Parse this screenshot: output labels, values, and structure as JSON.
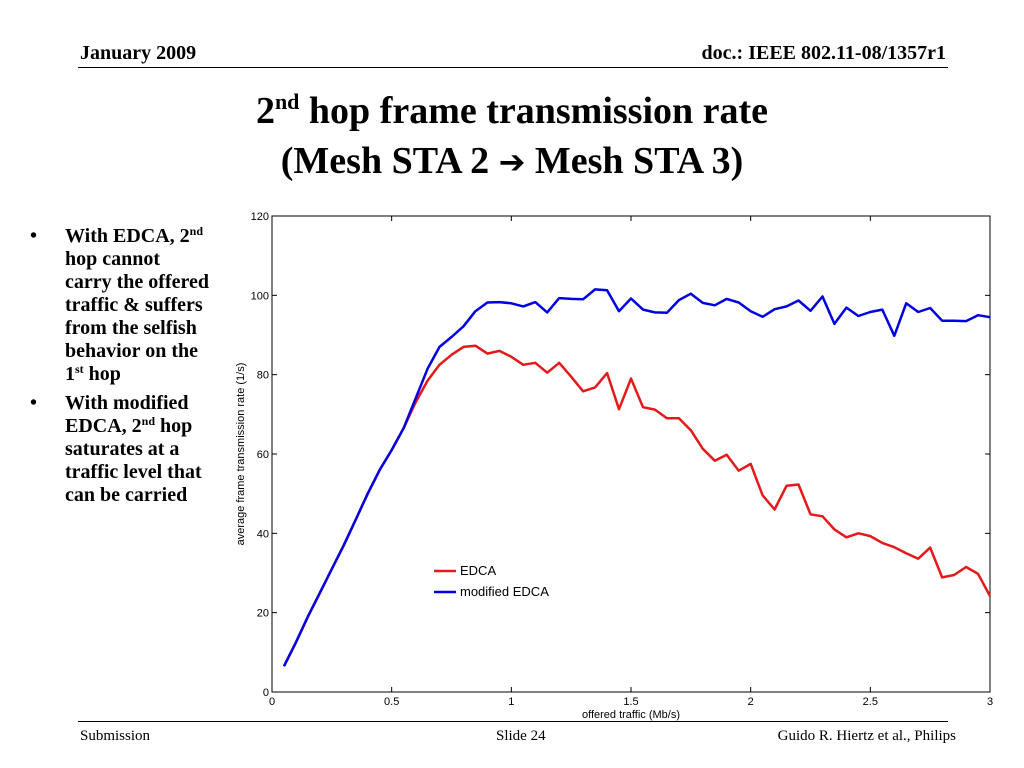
{
  "header": {
    "date": "January 2009",
    "doc": "doc.: IEEE 802.11-08/1357r1"
  },
  "title": {
    "line1_prefix": "2",
    "line1_sup": "nd",
    "line1_rest": " hop frame transmission rate",
    "line2_left": "(Mesh STA 2 ",
    "arrow": "➔",
    "line2_right": " Mesh STA 3)"
  },
  "bullets": {
    "marker": "•",
    "b1_a": "With EDCA, 2",
    "b1_sup1": "nd",
    "b1_b": " hop cannot carry the offered traffic & suffers from the selfish behavior on the 1",
    "b1_sup2": "st",
    "b1_c": " hop",
    "b2_a": "With modified EDCA, 2",
    "b2_sup": "nd",
    "b2_b": " hop saturates at a traffic level that can be carried"
  },
  "footer": {
    "left": "Submission",
    "center": "Slide 24",
    "right": "Guido R. Hiertz et al., Philips"
  },
  "chart_data": {
    "type": "line",
    "xlabel": "offered traffic (Mb/s)",
    "ylabel": "average frame transmission rate (1/s)",
    "xlim": [
      0,
      3
    ],
    "ylim": [
      0,
      120
    ],
    "xticks": [
      0,
      0.5,
      1,
      1.5,
      2,
      2.5,
      3
    ],
    "xtick_labels": [
      "0",
      "0.5",
      "1",
      "1.5",
      "2",
      "2.5",
      "3"
    ],
    "yticks": [
      0,
      20,
      40,
      60,
      80,
      100,
      120
    ],
    "ytick_labels": [
      "0",
      "20",
      "40",
      "60",
      "80",
      "100",
      "120"
    ],
    "grid": false,
    "legend_position": "center",
    "series": [
      {
        "name": "EDCA",
        "color": "#e31a1c",
        "x": [
          0.05,
          0.1,
          0.15,
          0.2,
          0.25,
          0.3,
          0.35,
          0.4,
          0.45,
          0.5,
          0.55,
          0.6,
          0.65,
          0.7,
          0.75,
          0.8,
          0.85,
          0.9,
          0.95,
          1.0,
          1.05,
          1.1,
          1.15,
          1.2,
          1.25,
          1.3,
          1.35,
          1.4,
          1.45,
          1.5,
          1.55,
          1.6,
          1.65,
          1.7,
          1.75,
          1.8,
          1.85,
          1.9,
          1.95,
          2.0,
          2.05,
          2.1,
          2.15,
          2.2,
          2.25,
          2.3,
          2.35,
          2.4,
          2.45,
          2.5,
          2.55,
          2.6,
          2.65,
          2.7,
          2.75,
          2.8,
          2.85,
          2.9,
          2.95,
          3.0
        ],
        "y": [
          6.5,
          12.5,
          19,
          25,
          31,
          37,
          43.5,
          50,
          56,
          61,
          66.5,
          73,
          78.5,
          82.5,
          85,
          87,
          87.3,
          85.3,
          86,
          84.5,
          82.5,
          83,
          80.5,
          83,
          79.5,
          75.8,
          76.8,
          80.4,
          71.3,
          79,
          71.8,
          71.2,
          69,
          69,
          66,
          61.3,
          58.3,
          59.8,
          55.8,
          57.5,
          49.6,
          46,
          52,
          52.3,
          44.8,
          44.3,
          41,
          39,
          40,
          39.3,
          37.6,
          36.5,
          35,
          33.6,
          36.4,
          28.9,
          29.5,
          31.5,
          29.8,
          24.2
        ]
      },
      {
        "name": "modified EDCA",
        "color": "#0000e0",
        "x": [
          0.05,
          0.1,
          0.15,
          0.2,
          0.25,
          0.3,
          0.35,
          0.4,
          0.45,
          0.5,
          0.55,
          0.6,
          0.65,
          0.7,
          0.75,
          0.8,
          0.85,
          0.9,
          0.95,
          1.0,
          1.05,
          1.1,
          1.15,
          1.2,
          1.25,
          1.3,
          1.35,
          1.4,
          1.45,
          1.5,
          1.55,
          1.6,
          1.65,
          1.7,
          1.75,
          1.8,
          1.85,
          1.9,
          1.95,
          2.0,
          2.05,
          2.1,
          2.15,
          2.2,
          2.25,
          2.3,
          2.35,
          2.4,
          2.45,
          2.5,
          2.55,
          2.6,
          2.65,
          2.7,
          2.75,
          2.8,
          2.85,
          2.9,
          2.95,
          3.0
        ],
        "y": [
          6.5,
          12.5,
          19,
          25,
          31,
          37,
          43.5,
          50,
          56,
          61,
          66.5,
          74,
          81.5,
          87,
          89.5,
          92.2,
          96,
          98.2,
          98.3,
          98,
          97.2,
          98.3,
          95.7,
          99.3,
          99.1,
          99,
          101.5,
          101.3,
          96,
          99.2,
          96.4,
          95.7,
          95.6,
          98.8,
          100.4,
          98.1,
          97.5,
          99.1,
          98.2,
          96,
          94.6,
          96.5,
          97.2,
          98.7,
          96.1,
          99.7,
          92.8,
          96.9,
          94.8,
          95.8,
          96.4,
          89.8,
          98,
          95.8,
          96.8,
          93.6,
          93.6,
          93.5,
          95,
          94.5
        ]
      }
    ]
  }
}
